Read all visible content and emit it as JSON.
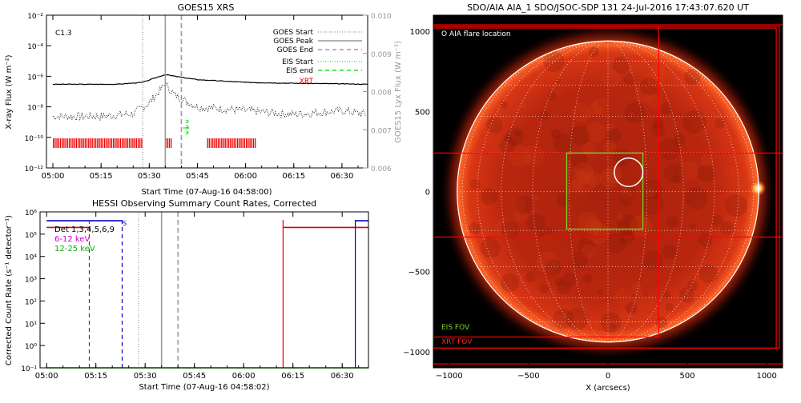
{
  "chart_data": [
    {
      "type": "line",
      "title": "GOES15 XRS",
      "xlabel": "Start Time (07-Aug-16 04:58:00)",
      "ylabel": "X-ray Flux (W m⁻²)",
      "y2label": "GOES15 Lyx Flux (W m⁻²)",
      "flare_class": "C1.3",
      "x_ticks": [
        "05:00",
        "05:15",
        "05:30",
        "05:45",
        "06:00",
        "06:15",
        "06:30"
      ],
      "y_ticks": [
        "10⁻¹²",
        "10⁻¹⁰",
        "10⁻⁸",
        "10⁻⁶",
        "10⁻⁴",
        "10⁻²"
      ],
      "y2_ticks": [
        "0.006",
        "0.007",
        "0.008",
        "0.009",
        "0.010"
      ],
      "y_scale": "log",
      "ylim": [
        1e-12,
        0.01
      ],
      "y2lim": [
        0.006,
        0.01
      ],
      "legend": [
        "GOES Start",
        "GOES Peak",
        "GOES End",
        "EIS Start",
        "EIS end",
        "XRT"
      ],
      "legend_position": "top-right",
      "colors": {
        "goes_flux": "#000000",
        "lya_flux": "#000000",
        "goes_start": "#9a9a9a",
        "goes_peak": "#9a9a9a",
        "goes_end": "#9a9a9a",
        "eis": "#22dd22",
        "xrt": "#ee0000"
      },
      "markers": {
        "goes_start": "05:28",
        "goes_peak": "05:35",
        "goes_end": "05:40",
        "eis_start": "05:40",
        "eis_end": "05:42"
      },
      "series": [
        {
          "name": "GOES flux",
          "x": [
            "05:00",
            "05:10",
            "05:20",
            "05:28",
            "05:32",
            "05:35",
            "05:38",
            "05:45",
            "06:00",
            "06:15",
            "06:30",
            "06:38"
          ],
          "values": [
            3e-07,
            3e-07,
            3e-07,
            4e-07,
            8e-07,
            1.3e-06,
            1e-06,
            6e-07,
            4e-07,
            3.5e-07,
            3.2e-07,
            3e-07
          ]
        },
        {
          "name": "Lya flux",
          "x": [
            "05:00",
            "05:15",
            "05:25",
            "05:30",
            "05:35",
            "05:38",
            "05:45",
            "06:00",
            "06:15",
            "06:30",
            "06:38"
          ],
          "values": [
            0.00735,
            0.00735,
            0.00742,
            0.0077,
            0.0082,
            0.0079,
            0.0076,
            0.0075,
            0.0074,
            0.0075,
            0.0074
          ]
        }
      ],
      "xrt_segments": [
        [
          "05:00",
          "05:28"
        ],
        [
          "05:35",
          "05:37"
        ],
        [
          "05:48",
          "06:03"
        ]
      ]
    },
    {
      "type": "line",
      "title": "HESSI Observing Summary Count Rates, Corrected",
      "xlabel": "Start Time (07-Aug-16 04:58:02)",
      "ylabel": "Corrected Count Rate (s⁻¹ detector⁻¹)",
      "x_ticks": [
        "05:00",
        "05:15",
        "05:30",
        "05:45",
        "06:00",
        "06:15",
        "06:30"
      ],
      "y_ticks": [
        "10⁻¹",
        "10⁰",
        "10¹",
        "10²",
        "10³",
        "10⁴",
        "10⁵",
        "10⁶"
      ],
      "y_scale": "log",
      "ylim": [
        0.1,
        1000000.0
      ],
      "legend": [
        "Det 1,3,4,5,6,9",
        "6-12 keV",
        "12-25 keV"
      ],
      "legend_position": "top-left",
      "annotation": "S",
      "colors": {
        "3-6": "#0000cc",
        "6-12": "#dd0000",
        "12-25": "#11aa11",
        "det_label": "#000000",
        "legend_612": "#cc00cc",
        "legend_1225": "#11aa11",
        "markers": "#9a9a9a"
      },
      "markers": {
        "goes_start": "05:28",
        "goes_peak": "05:35",
        "goes_end": "05:40"
      },
      "series": [
        {
          "name": "",
          "x_start": "05:00",
          "x_end": "05:23",
          "value": 400000,
          "color": "blue"
        },
        {
          "name": "",
          "x_start": "06:34",
          "x_end": "06:38",
          "value": 400000,
          "color": "blue"
        },
        {
          "name": "6-12 keV",
          "x_start": "05:00",
          "x_end": "05:13",
          "value": 200000,
          "color": "red"
        },
        {
          "name": "6-12 keV",
          "x_start": "06:12",
          "x_end": "06:38",
          "value": 200000,
          "color": "red"
        },
        {
          "name": "12-25 keV",
          "x_start": "05:00",
          "x_end": "06:38",
          "value": 0.1,
          "color": "green"
        }
      ],
      "gap_lines": [
        {
          "time": "05:13",
          "color": "red",
          "style": "dashed"
        },
        {
          "time": "05:23",
          "color": "blue",
          "style": "dashed"
        },
        {
          "time": "06:12",
          "color": "red",
          "style": "solid"
        },
        {
          "time": "06:34",
          "color": "blue",
          "style": "solid"
        }
      ]
    },
    {
      "type": "heatmap",
      "title": "SDO/AIA AIA_1 SDO/JSOC-SDP 131 24-Jul-2016 17:43:07.620 UT",
      "xlabel": "X (arcsecs)",
      "ylabel": "",
      "x_ticks": [
        "−1000",
        "−500",
        "0",
        "500",
        "1000"
      ],
      "y_ticks": [
        "1000",
        "500",
        "0",
        "−500",
        "−1000"
      ],
      "xlim": [
        -1100,
        1100
      ],
      "ylim": [
        -1100,
        1100
      ],
      "solar_radius": 950,
      "flare_location_label": "O AIA flare location",
      "flare_location": {
        "x": 130,
        "y": 120,
        "r": 90
      },
      "eis_fov_label": "EIS FOV",
      "xrt_fov_label": "XRT FOV",
      "eis_fov": {
        "x1": -260,
        "y1": -240,
        "x2": 220,
        "y2": 240
      },
      "xrt_fovs": [
        {
          "x1": -1100,
          "y1": -930,
          "x2": 320,
          "y2": 1030
        },
        {
          "x1": -1100,
          "y1": -1000,
          "x2": 1080,
          "y2": 1030
        },
        {
          "x1": -1100,
          "y1": -1000,
          "x2": 1060,
          "y2": 1020
        },
        {
          "x1": -1100,
          "y1": -290,
          "x2": 1100,
          "y2": 240
        },
        {
          "x1": -1100,
          "y1": -1100,
          "x2": 1100,
          "y2": 1040
        }
      ],
      "colors": {
        "sun": "#e83010",
        "background": "#000000",
        "limb": "#ffffff",
        "grid": "#ffffff",
        "eis": "#7ed321",
        "xrt": "#ff0000",
        "flare_circle": "#ffffff"
      }
    }
  ]
}
